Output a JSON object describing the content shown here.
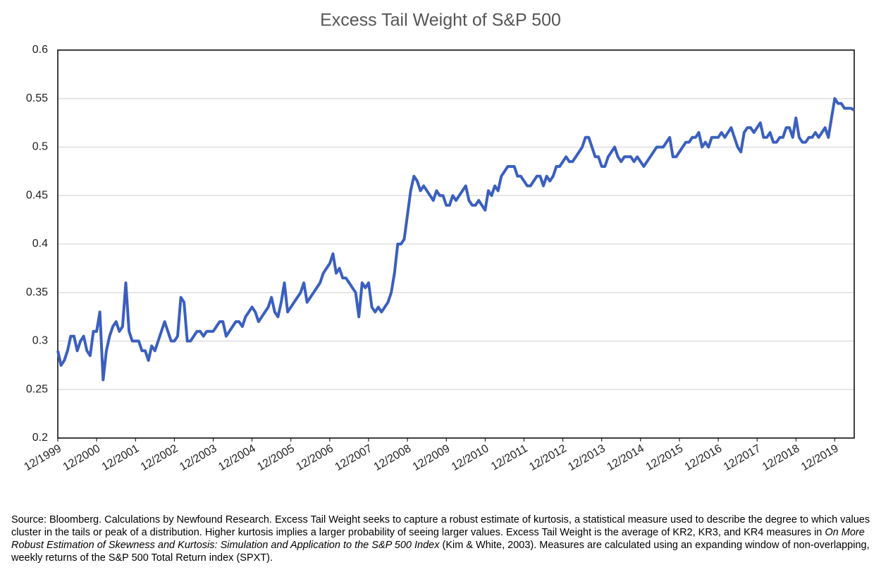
{
  "chart_data": {
    "type": "line",
    "title": "Excess Tail Weight of S&P 500",
    "note": [
      "Source: Bloomberg.  Calculations by Newfound Research.  Excess Tail Weight seeks to capture a robust estimate of kurtosis, a statistical measure used to describe the degree to which values cluster in the tails or peak of a distribution.  Higher kurtosis implies a larger probability of seeing larger values.  Excess Tail Weight is the average of KR2, KR3, and KR4 measures in ",
      "On More Robust Estimation of Skewness and Kurtosis: Simulation and Application to the S&P 500 Index",
      " (Kim & White, 2003).  Measures are calculated using an expanding window of non-overlapping, weekly returns of the S&P 500 Total Return index (SPXT)."
    ],
    "x": [
      "12/1999",
      "01/2000",
      "02/2000",
      "03/2000",
      "04/2000",
      "05/2000",
      "06/2000",
      "07/2000",
      "08/2000",
      "09/2000",
      "10/2000",
      "11/2000",
      "12/2000",
      "01/2001",
      "02/2001",
      "03/2001",
      "04/2001",
      "05/2001",
      "06/2001",
      "07/2001",
      "08/2001",
      "09/2001",
      "10/2001",
      "11/2001",
      "12/2001",
      "01/2002",
      "02/2002",
      "03/2002",
      "04/2002",
      "05/2002",
      "06/2002",
      "07/2002",
      "08/2002",
      "09/2002",
      "10/2002",
      "11/2002",
      "12/2002",
      "01/2003",
      "02/2003",
      "03/2003",
      "04/2003",
      "05/2003",
      "06/2003",
      "07/2003",
      "08/2003",
      "09/2003",
      "10/2003",
      "11/2003",
      "12/2003",
      "01/2004",
      "02/2004",
      "03/2004",
      "04/2004",
      "05/2004",
      "06/2004",
      "07/2004",
      "08/2004",
      "09/2004",
      "10/2004",
      "11/2004",
      "12/2004",
      "01/2005",
      "02/2005",
      "03/2005",
      "04/2005",
      "05/2005",
      "06/2005",
      "07/2005",
      "08/2005",
      "09/2005",
      "10/2005",
      "11/2005",
      "12/2005",
      "01/2006",
      "02/2006",
      "03/2006",
      "04/2006",
      "05/2006",
      "06/2006",
      "07/2006",
      "08/2006",
      "09/2006",
      "10/2006",
      "11/2006",
      "12/2006",
      "01/2007",
      "02/2007",
      "03/2007",
      "04/2007",
      "05/2007",
      "06/2007",
      "07/2007",
      "08/2007",
      "09/2007",
      "10/2007",
      "11/2007",
      "12/2007",
      "01/2008",
      "02/2008",
      "03/2008",
      "04/2008",
      "05/2008",
      "06/2008",
      "07/2008",
      "08/2008",
      "09/2008",
      "10/2008",
      "11/2008",
      "12/2008",
      "01/2009",
      "02/2009",
      "03/2009",
      "04/2009",
      "05/2009",
      "06/2009",
      "07/2009",
      "08/2009",
      "09/2009",
      "10/2009",
      "11/2009",
      "12/2009",
      "01/2010",
      "02/2010",
      "03/2010",
      "04/2010",
      "05/2010",
      "06/2010",
      "07/2010",
      "08/2010",
      "09/2010",
      "10/2010",
      "11/2010",
      "12/2010",
      "01/2011",
      "02/2011",
      "03/2011",
      "04/2011",
      "05/2011",
      "06/2011",
      "07/2011",
      "08/2011",
      "09/2011",
      "10/2011",
      "11/2011",
      "12/2011",
      "01/2012",
      "02/2012",
      "03/2012",
      "04/2012",
      "05/2012",
      "06/2012",
      "07/2012",
      "08/2012",
      "09/2012",
      "10/2012",
      "11/2012",
      "12/2012",
      "01/2013",
      "02/2013",
      "03/2013",
      "04/2013",
      "05/2013",
      "06/2013",
      "07/2013",
      "08/2013",
      "09/2013",
      "10/2013",
      "11/2013",
      "12/2013",
      "01/2014",
      "02/2014",
      "03/2014",
      "04/2014",
      "05/2014",
      "06/2014",
      "07/2014",
      "08/2014",
      "09/2014",
      "10/2014",
      "11/2014",
      "12/2014",
      "01/2015",
      "02/2015",
      "03/2015",
      "04/2015",
      "05/2015",
      "06/2015",
      "07/2015",
      "08/2015",
      "09/2015",
      "10/2015",
      "11/2015",
      "12/2015",
      "01/2016",
      "02/2016",
      "03/2016",
      "04/2016",
      "05/2016",
      "06/2016",
      "07/2016",
      "08/2016",
      "09/2016",
      "10/2016",
      "11/2016",
      "12/2016",
      "01/2017",
      "02/2017",
      "03/2017",
      "04/2017",
      "05/2017",
      "06/2017",
      "07/2017",
      "08/2017",
      "09/2017",
      "10/2017",
      "11/2017",
      "12/2017",
      "01/2018",
      "02/2018",
      "03/2018",
      "04/2018",
      "05/2018",
      "06/2018",
      "07/2018",
      "08/2018",
      "09/2018",
      "10/2018",
      "11/2018",
      "12/2018",
      "01/2019",
      "02/2019",
      "03/2019",
      "04/2019",
      "05/2019",
      "06/2019",
      "07/2019",
      "08/2019",
      "09/2019",
      "10/2019",
      "11/2019",
      "12/2019",
      "01/2020",
      "02/2020",
      "03/2020",
      "04/2020",
      "05/2020",
      "06/2020"
    ],
    "series": [
      {
        "name": "Excess Tail Weight",
        "color": "#3a5fbf",
        "values": [
          0.29,
          0.275,
          0.28,
          0.29,
          0.305,
          0.305,
          0.29,
          0.3,
          0.305,
          0.29,
          0.285,
          0.31,
          0.31,
          0.33,
          0.26,
          0.29,
          0.305,
          0.315,
          0.32,
          0.31,
          0.315,
          0.36,
          0.31,
          0.3,
          0.3,
          0.3,
          0.29,
          0.29,
          0.28,
          0.295,
          0.29,
          0.3,
          0.31,
          0.32,
          0.31,
          0.3,
          0.3,
          0.305,
          0.345,
          0.34,
          0.3,
          0.3,
          0.305,
          0.31,
          0.31,
          0.305,
          0.31,
          0.31,
          0.31,
          0.315,
          0.32,
          0.32,
          0.305,
          0.31,
          0.315,
          0.32,
          0.32,
          0.315,
          0.325,
          0.33,
          0.335,
          0.33,
          0.32,
          0.325,
          0.33,
          0.335,
          0.345,
          0.33,
          0.325,
          0.34,
          0.36,
          0.33,
          0.335,
          0.34,
          0.345,
          0.35,
          0.36,
          0.34,
          0.345,
          0.35,
          0.355,
          0.36,
          0.37,
          0.375,
          0.38,
          0.39,
          0.37,
          0.375,
          0.365,
          0.365,
          0.36,
          0.355,
          0.35,
          0.325,
          0.36,
          0.355,
          0.36,
          0.335,
          0.33,
          0.335,
          0.33,
          0.335,
          0.34,
          0.35,
          0.37,
          0.4,
          0.4,
          0.405,
          0.43,
          0.455,
          0.47,
          0.465,
          0.455,
          0.46,
          0.455,
          0.45,
          0.445,
          0.455,
          0.45,
          0.45,
          0.44,
          0.44,
          0.45,
          0.445,
          0.45,
          0.455,
          0.46,
          0.445,
          0.44,
          0.44,
          0.445,
          0.44,
          0.435,
          0.455,
          0.45,
          0.46,
          0.455,
          0.47,
          0.475,
          0.48,
          0.48,
          0.48,
          0.47,
          0.47,
          0.465,
          0.46,
          0.46,
          0.465,
          0.47,
          0.47,
          0.46,
          0.47,
          0.465,
          0.47,
          0.48,
          0.48,
          0.485,
          0.49,
          0.485,
          0.485,
          0.49,
          0.495,
          0.5,
          0.51,
          0.51,
          0.5,
          0.49,
          0.49,
          0.48,
          0.48,
          0.49,
          0.495,
          0.5,
          0.49,
          0.485,
          0.49,
          0.49,
          0.49,
          0.485,
          0.49,
          0.485,
          0.48,
          0.485,
          0.49,
          0.495,
          0.5,
          0.5,
          0.5,
          0.505,
          0.51,
          0.49,
          0.49,
          0.495,
          0.5,
          0.505,
          0.505,
          0.51,
          0.51,
          0.515,
          0.5,
          0.505,
          0.5,
          0.51,
          0.51,
          0.51,
          0.515,
          0.51,
          0.515,
          0.52,
          0.51,
          0.5,
          0.495,
          0.515,
          0.52,
          0.52,
          0.515,
          0.52,
          0.525,
          0.51,
          0.51,
          0.515,
          0.505,
          0.505,
          0.51,
          0.51,
          0.52,
          0.52,
          0.51,
          0.53,
          0.51,
          0.505,
          0.505,
          0.51,
          0.51,
          0.515,
          0.51,
          0.515,
          0.52,
          0.51,
          0.53,
          0.55,
          0.545,
          0.545,
          0.54,
          0.54,
          0.54,
          0.538
        ]
      }
    ],
    "xlim": [
      "12/1999",
      "06/2020"
    ],
    "xticks": [
      "12/1999",
      "12/2000",
      "12/2001",
      "12/2002",
      "12/2003",
      "12/2004",
      "12/2005",
      "12/2006",
      "12/2007",
      "12/2008",
      "12/2009",
      "12/2010",
      "12/2011",
      "12/2012",
      "12/2013",
      "12/2014",
      "12/2015",
      "12/2016",
      "12/2017",
      "12/2018",
      "12/2019"
    ],
    "ylim": [
      0.2,
      0.6
    ],
    "yticks": [
      0.2,
      0.25,
      0.3,
      0.35,
      0.4,
      0.45,
      0.5,
      0.55,
      0.6
    ],
    "grid": true
  }
}
